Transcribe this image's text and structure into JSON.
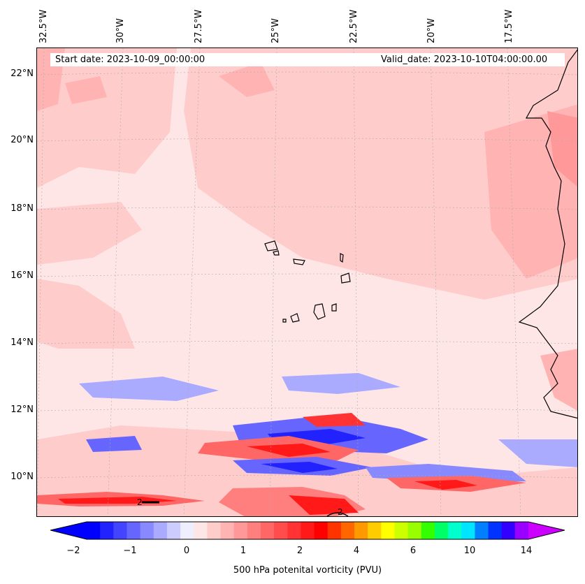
{
  "map": {
    "start_date": "Start date: 2023-10-09_00:00:00",
    "valid_date": "Valid_date: 2023-10-10T04:00:00.00",
    "lon_labels": [
      "32.5°W",
      "30°W",
      "27.5°W",
      "25°W",
      "22.5°W",
      "20°W",
      "17.5°W"
    ],
    "lat_labels": [
      "22°N",
      "20°N",
      "18°N",
      "16°N",
      "14°N",
      "12°N",
      "10°N"
    ],
    "contour_label": "2",
    "contour_label_2": "2"
  },
  "colorbar": {
    "tick_labels": [
      "−2",
      "−1",
      "0",
      "1",
      "2",
      "4",
      "6",
      "10",
      "14"
    ],
    "label": "500 hPa potenital vorticity (PVU)",
    "colors": [
      "#0000ff",
      "#2222ff",
      "#4444ff",
      "#6666ff",
      "#8888ff",
      "#aaaaff",
      "#ccccff",
      "#eeeeff",
      "#ffe6e6",
      "#ffcccc",
      "#ffb3b3",
      "#ff9999",
      "#ff7f7f",
      "#ff6666",
      "#ff4c4c",
      "#ff3333",
      "#ff1919",
      "#ff0000",
      "#ff3300",
      "#ff6600",
      "#ff9900",
      "#ffcc00",
      "#ffff00",
      "#ccff00",
      "#99ff00",
      "#33ff00",
      "#00ff66",
      "#00ffcc",
      "#00e5ff",
      "#0080ff",
      "#0033ff",
      "#3300ff",
      "#9900ff"
    ],
    "under_color": "#0000ff",
    "over_color": "#cc00ff"
  }
}
